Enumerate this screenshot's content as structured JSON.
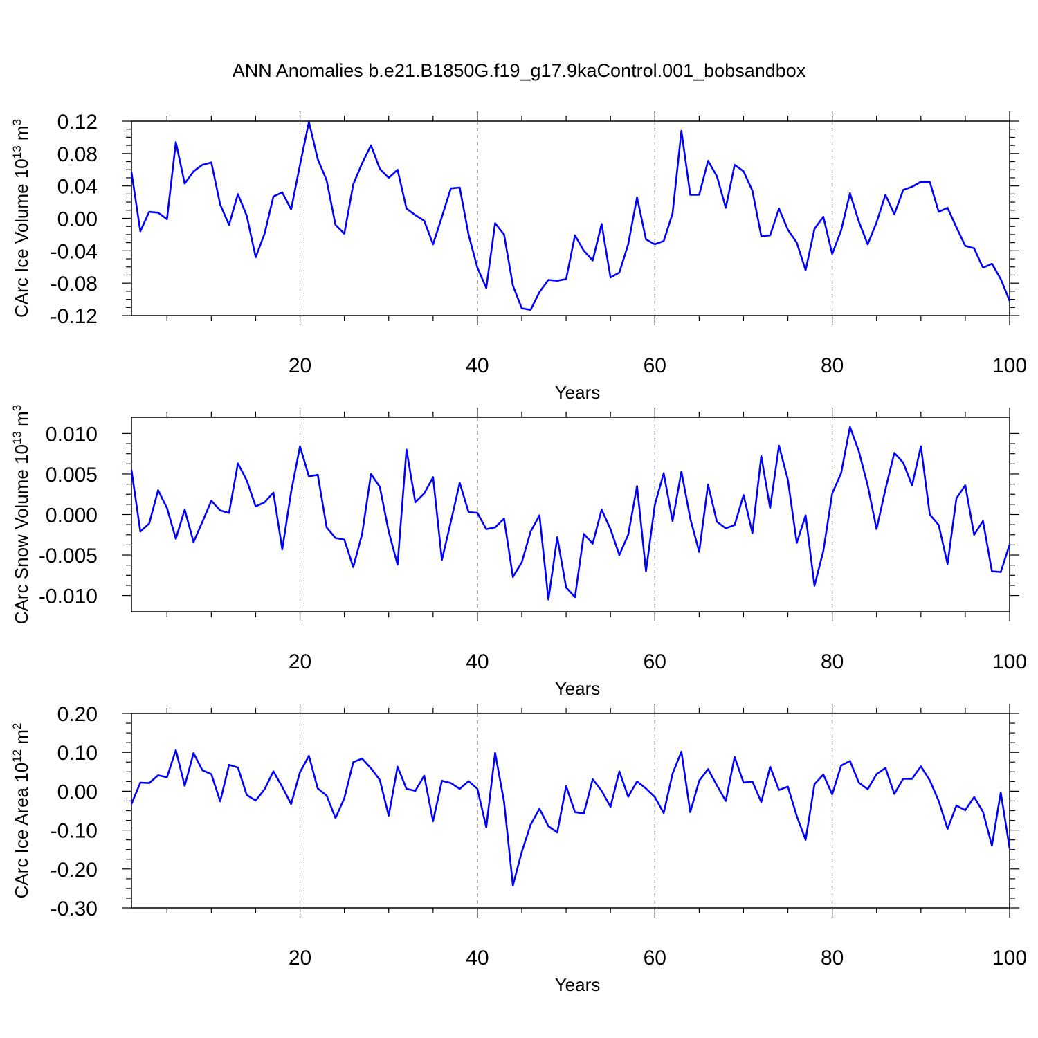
{
  "figure_title": "ANN Anomalies b.e21.B1850G.f19_g17.9kaControl.001_bobsandbox",
  "colors": {
    "line": "#0000ff",
    "axes": "#000000",
    "grid": "#444444"
  },
  "chart_data": [
    {
      "type": "line",
      "ylabel": {
        "text": "CArc Ice Volume 10",
        "sup": "13",
        "unit": " m",
        "unit_sup": "3"
      },
      "xlabel": "Years",
      "xlim": [
        1,
        100
      ],
      "ylim": [
        -0.12,
        0.12
      ],
      "xticks": [
        "20",
        "40",
        "60",
        "80",
        "100"
      ],
      "yticks": [
        "0.12",
        "0.08",
        "0.04",
        "0.00",
        "-0.04",
        "-0.08",
        "-0.12"
      ],
      "grid": "dashed vertical at 20, 40, 60, 80",
      "series": [
        {
          "values": [
            0.057,
            -0.016,
            0.008,
            0.007,
            -0.001,
            0.094,
            0.043,
            0.058,
            0.066,
            0.069,
            0.017,
            -0.008,
            0.03,
            0.003,
            -0.048,
            -0.019,
            0.027,
            0.032,
            0.011,
            0.066,
            0.119,
            0.073,
            0.047,
            -0.008,
            -0.019,
            0.042,
            0.068,
            0.09,
            0.061,
            0.05,
            0.06,
            0.012,
            0.004,
            -0.003,
            -0.032,
            0.002,
            0.037,
            0.038,
            -0.02,
            -0.061,
            -0.086,
            -0.006,
            -0.02,
            -0.083,
            -0.111,
            -0.113,
            -0.091,
            -0.076,
            -0.077,
            -0.075,
            -0.021,
            -0.04,
            -0.052,
            -0.007,
            -0.073,
            -0.067,
            -0.032,
            0.026,
            -0.026,
            -0.032,
            -0.028,
            0.006,
            0.108,
            0.029,
            0.029,
            0.071,
            0.052,
            0.013,
            0.066,
            0.058,
            0.034,
            -0.022,
            -0.021,
            0.012,
            -0.014,
            -0.03,
            -0.064,
            -0.013,
            0.002,
            -0.044,
            -0.015,
            0.031,
            -0.004,
            -0.032,
            -0.005,
            0.029,
            0.005,
            0.035,
            0.039,
            0.045,
            0.045,
            0.008,
            0.013,
            -0.011,
            -0.034,
            -0.037,
            -0.061,
            -0.056,
            -0.075,
            -0.102
          ]
        }
      ]
    },
    {
      "type": "line",
      "ylabel": {
        "text": "CArc Snow Volume 10",
        "sup": "13",
        "unit": " m",
        "unit_sup": "3"
      },
      "xlabel": "Years",
      "xlim": [
        1,
        100
      ],
      "ylim": [
        -0.012,
        0.012
      ],
      "xticks": [
        "20",
        "40",
        "60",
        "80",
        "100"
      ],
      "yticks": [
        "0.010",
        "0.005",
        "0.000",
        "-0.005",
        "-0.010"
      ],
      "grid": "dashed vertical at 20, 40, 60, 80",
      "series": [
        {
          "values": [
            0.0055,
            -0.0021,
            -0.0011,
            0.003,
            0.0008,
            -0.003,
            0.0006,
            -0.0034,
            -0.0009,
            0.0017,
            0.0005,
            0.0002,
            0.0063,
            0.0042,
            0.001,
            0.0015,
            0.0027,
            -0.0043,
            0.0028,
            0.0084,
            0.0047,
            0.0049,
            -0.0016,
            -0.0029,
            -0.0031,
            -0.0065,
            -0.0024,
            0.005,
            0.0034,
            -0.0021,
            -0.0062,
            0.008,
            0.0015,
            0.0026,
            0.0046,
            -0.0056,
            -0.0009,
            0.0039,
            0.0003,
            0.0002,
            -0.0018,
            -0.0016,
            -0.0005,
            -0.0077,
            -0.0059,
            -0.0021,
            -0.0001,
            -0.0105,
            -0.0028,
            -0.009,
            -0.0102,
            -0.0024,
            -0.0036,
            0.0006,
            -0.0018,
            -0.005,
            -0.0025,
            0.0035,
            -0.007,
            0.0012,
            0.0051,
            -0.0008,
            0.0053,
            -0.0005,
            -0.0046,
            0.0037,
            -0.0009,
            -0.0017,
            -0.0013,
            0.0024,
            -0.0023,
            0.0072,
            0.0008,
            0.0085,
            0.0043,
            -0.0035,
            -0.0001,
            -0.0088,
            -0.0045,
            0.0026,
            0.0051,
            0.0108,
            0.0078,
            0.0036,
            -0.0018,
            0.0031,
            0.0076,
            0.0064,
            0.0036,
            0.0084,
            0.0,
            -0.0013,
            -0.0061,
            0.002,
            0.0036,
            -0.0025,
            -0.0008,
            -0.007,
            -0.0071,
            -0.0037
          ]
        }
      ]
    },
    {
      "type": "line",
      "ylabel": {
        "text": "CArc Ice Area 10",
        "sup": "12",
        "unit": " m",
        "unit_sup": "2"
      },
      "xlabel": "Years",
      "xlim": [
        1,
        100
      ],
      "ylim": [
        -0.3,
        0.2
      ],
      "xticks": [
        "20",
        "40",
        "60",
        "80",
        "100"
      ],
      "yticks": [
        "0.20",
        "0.10",
        "0.00",
        "-0.10",
        "-0.20",
        "-0.30"
      ],
      "grid": "dashed vertical at 20, 40, 60, 80",
      "series": [
        {
          "values": [
            -0.033,
            0.022,
            0.021,
            0.041,
            0.036,
            0.106,
            0.014,
            0.098,
            0.054,
            0.044,
            -0.026,
            0.068,
            0.061,
            -0.01,
            -0.024,
            0.005,
            0.051,
            0.011,
            -0.033,
            0.049,
            0.091,
            0.007,
            -0.011,
            -0.069,
            -0.018,
            0.075,
            0.084,
            0.059,
            0.029,
            -0.063,
            0.063,
            0.006,
            0.001,
            0.04,
            -0.077,
            0.027,
            0.021,
            0.006,
            0.026,
            0.006,
            -0.093,
            0.099,
            -0.027,
            -0.242,
            -0.156,
            -0.086,
            -0.045,
            -0.09,
            -0.106,
            0.013,
            -0.054,
            -0.057,
            0.031,
            0.001,
            -0.04,
            0.051,
            -0.014,
            0.025,
            0.007,
            -0.015,
            -0.056,
            0.045,
            0.102,
            -0.054,
            0.027,
            0.057,
            0.015,
            -0.025,
            0.088,
            0.022,
            0.025,
            -0.028,
            0.063,
            0.003,
            0.012,
            -0.064,
            -0.125,
            0.018,
            0.043,
            -0.008,
            0.066,
            0.078,
            0.022,
            0.005,
            0.044,
            0.06,
            -0.007,
            0.032,
            0.032,
            0.064,
            0.028,
            -0.025,
            -0.097,
            -0.037,
            -0.049,
            -0.015,
            -0.053,
            -0.14,
            -0.003,
            -0.147
          ]
        }
      ]
    }
  ]
}
